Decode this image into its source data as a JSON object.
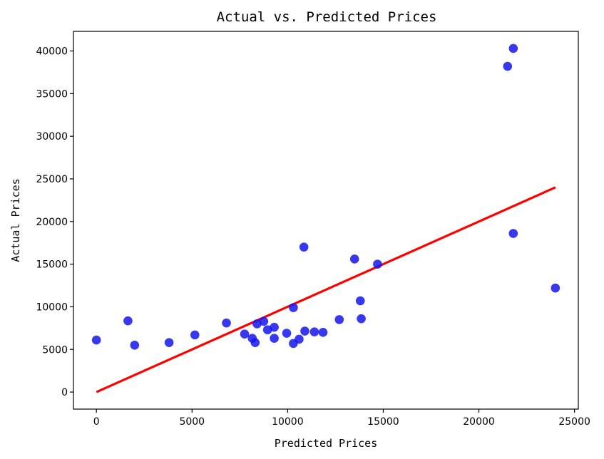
{
  "chart_data": {
    "type": "scatter",
    "title": "Actual vs. Predicted Prices",
    "xlabel": "Predicted Prices",
    "ylabel": "Actual Prices",
    "xlim": [
      -1200,
      25200
    ],
    "ylim": [
      -2000,
      42300
    ],
    "xticks": [
      0,
      5000,
      10000,
      15000,
      20000,
      25000
    ],
    "yticks": [
      0,
      5000,
      10000,
      15000,
      20000,
      25000,
      30000,
      35000,
      40000
    ],
    "grid": false,
    "series": [
      {
        "kind": "scatter",
        "color": "#1515ee",
        "points": [
          [
            0,
            6100
          ],
          [
            1650,
            8350
          ],
          [
            2000,
            5500
          ],
          [
            3800,
            5800
          ],
          [
            5150,
            6700
          ],
          [
            6800,
            8100
          ],
          [
            7750,
            6800
          ],
          [
            8150,
            6300
          ],
          [
            8300,
            5800
          ],
          [
            8400,
            8000
          ],
          [
            8750,
            8300
          ],
          [
            8950,
            7300
          ],
          [
            9300,
            7600
          ],
          [
            9300,
            6300
          ],
          [
            9950,
            6900
          ],
          [
            10300,
            9900
          ],
          [
            10300,
            5700
          ],
          [
            10600,
            6200
          ],
          [
            10850,
            17000
          ],
          [
            10900,
            7150
          ],
          [
            11400,
            7050
          ],
          [
            11850,
            7000
          ],
          [
            12700,
            8500
          ],
          [
            13500,
            15600
          ],
          [
            13800,
            10700
          ],
          [
            13850,
            8600
          ],
          [
            14700,
            15000
          ],
          [
            21500,
            38200
          ],
          [
            21800,
            40300
          ],
          [
            21800,
            18600
          ],
          [
            24000,
            12200
          ]
        ]
      },
      {
        "kind": "line",
        "color": "#ff0000",
        "points": [
          [
            0,
            0
          ],
          [
            24000,
            24000
          ]
        ]
      }
    ]
  }
}
